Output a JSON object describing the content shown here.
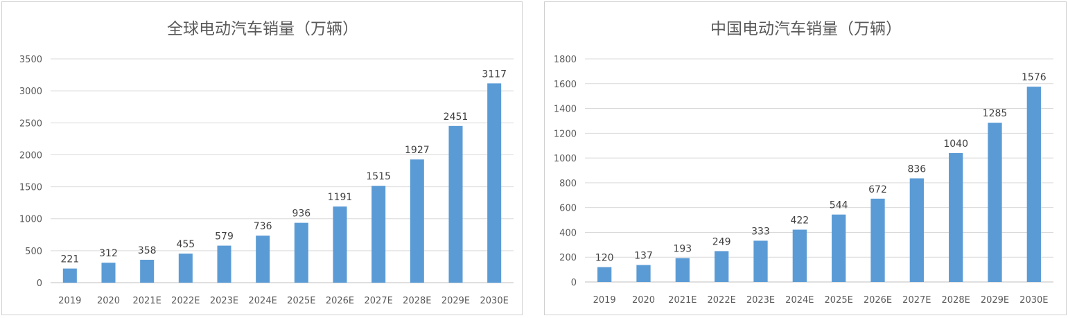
{
  "chart_data": [
    {
      "type": "bar",
      "title": "全球电动汽车销量（万辆）",
      "categories": [
        "2019",
        "2020",
        "2021E",
        "2022E",
        "2023E",
        "2024E",
        "2025E",
        "2026E",
        "2027E",
        "2028E",
        "2029E",
        "2030E"
      ],
      "values": [
        221,
        312,
        358,
        455,
        579,
        736,
        936,
        1191,
        1515,
        1927,
        2451,
        3117
      ],
      "ylim": [
        0,
        3500
      ],
      "yticks": [
        0,
        500,
        1000,
        1500,
        2000,
        2500,
        3000,
        3500
      ],
      "xlabel": "",
      "ylabel": "",
      "grid": true,
      "legend": "none",
      "bar_color": "#5b9bd5"
    },
    {
      "type": "bar",
      "title": "中国电动汽车销量（万辆）",
      "categories": [
        "2019",
        "2020",
        "2021E",
        "2022E",
        "2023E",
        "2024E",
        "2025E",
        "2026E",
        "2027E",
        "2028E",
        "2029E",
        "2030E"
      ],
      "values": [
        120,
        137,
        193,
        249,
        333,
        422,
        544,
        672,
        836,
        1040,
        1285,
        1576
      ],
      "ylim": [
        0,
        1800
      ],
      "yticks": [
        0,
        200,
        400,
        600,
        800,
        1000,
        1200,
        1400,
        1600,
        1800
      ],
      "xlabel": "",
      "ylabel": "",
      "grid": true,
      "legend": "none",
      "bar_color": "#5b9bd5"
    }
  ]
}
